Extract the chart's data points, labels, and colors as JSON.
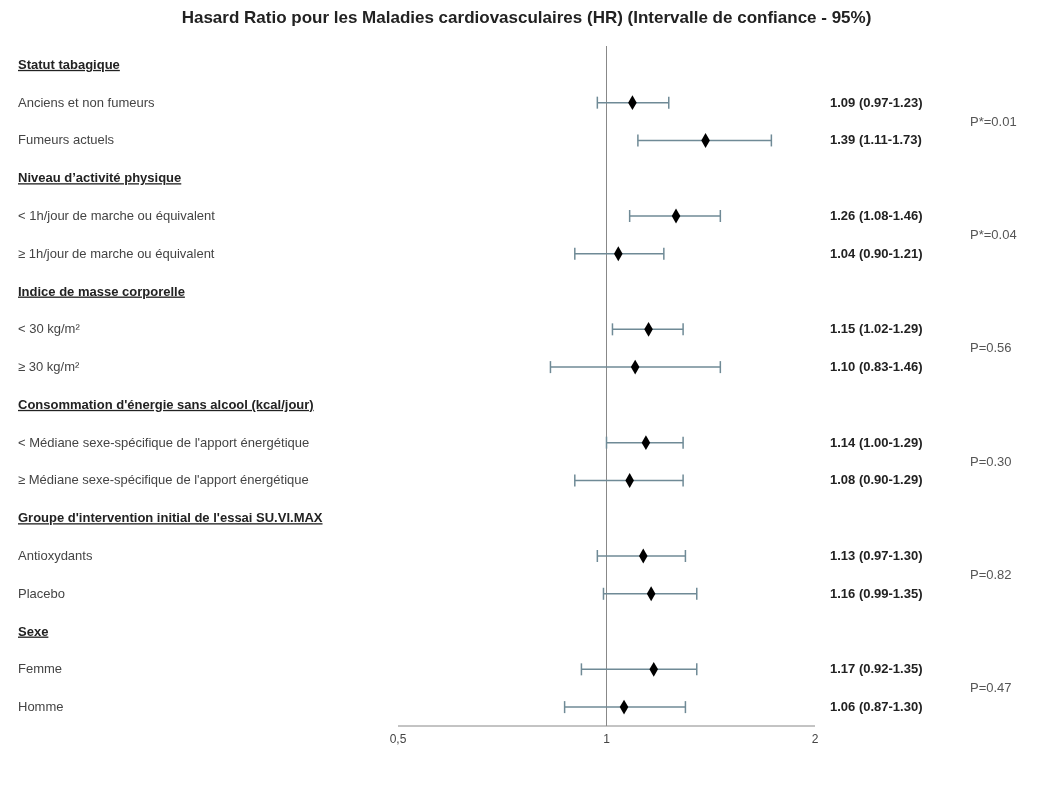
{
  "chart_data": {
    "type": "scatter",
    "title": "Hasard Ratio pour les Maladies cardiovasculaires (HR) (Intervalle de confiance - 95%)",
    "orientation": "horizontal",
    "categories": [
      "Statut tabagique",
      "Anciens et non fumeurs",
      "Fumeurs actuels",
      "Niveau d’activité physique",
      "< 1h/jour de marche ou équivalent",
      "≥ 1h/jour de marche ou équivalent",
      "Indice de masse corporelle",
      "< 30 kg/m²",
      "≥ 30 kg/m²",
      "Consommation d'énergie sans alcool (kcal/jour)",
      "< Médiane sexe-spécifique de l'apport énergétique",
      "≥ Médiane sexe-spécifique de l'apport énergétique",
      "Groupe d'intervention initial de l'essai SU.VI.MAX",
      "Antioxydants",
      "Placebo",
      "Sexe",
      "Femme",
      "Homme"
    ],
    "values": [
      null,
      1.09,
      1.39,
      null,
      1.26,
      1.04,
      null,
      1.15,
      1.1,
      null,
      1.14,
      1.08,
      null,
      1.13,
      1.16,
      null,
      1.17,
      1.06
    ],
    "errors": [
      null,
      [
        0.97,
        1.23
      ],
      [
        1.11,
        1.73
      ],
      null,
      [
        1.08,
        1.46
      ],
      [
        0.9,
        1.21
      ],
      null,
      [
        1.02,
        1.29
      ],
      [
        0.83,
        1.46
      ],
      null,
      [
        1.0,
        1.29
      ],
      [
        0.9,
        1.29
      ],
      null,
      [
        0.97,
        1.3
      ],
      [
        0.99,
        1.35
      ],
      null,
      [
        0.92,
        1.35
      ],
      [
        0.87,
        1.3
      ]
    ],
    "value_labels": [
      null,
      "1.09 (0.97-1.23)",
      "1.39 (1.11-1.73)",
      null,
      "1.26 (1.08-1.46)",
      "1.04 (0.90-1.21)",
      null,
      "1.15 (1.02-1.29)",
      "1.10 (0.83-1.46)",
      null,
      "1.14 (1.00-1.29)",
      "1.08 (0.90-1.29)",
      null,
      "1.13 (0.97-1.30)",
      "1.16 (0.99-1.35)",
      null,
      "1.17 (0.92-1.35)",
      "1.06 (0.87-1.30)"
    ],
    "color": "#000000",
    "marker": "diamond",
    "log": "x",
    "xlim": [
      0.5,
      2
    ],
    "xticks": [
      {
        "value": 0.5,
        "label": "0,5"
      },
      1,
      2
    ],
    "ref_lines": [
      {
        "axis": "x",
        "value": 1
      }
    ],
    "annotations": [
      "P*=0.01",
      "P*=0.04",
      "P=0.56",
      "P=0.30",
      "P=0.82",
      "P=0.47"
    ]
  }
}
